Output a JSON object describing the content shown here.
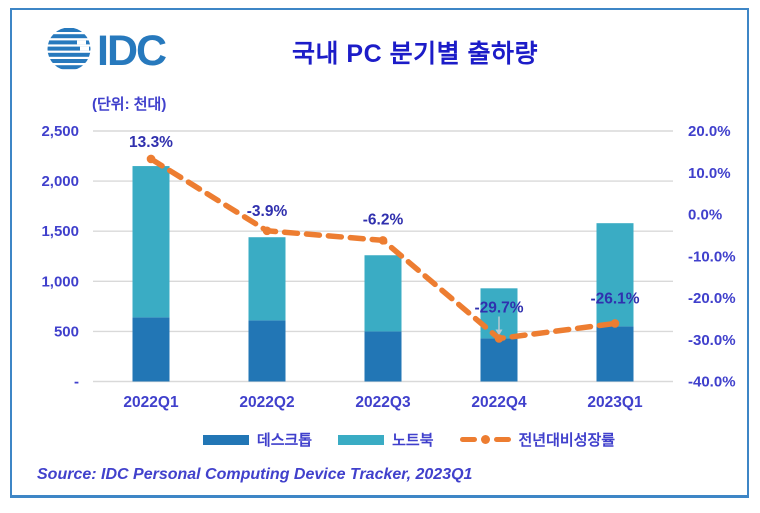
{
  "header": {
    "logo_text": "IDC",
    "title": "국내 PC 분기별 출하량"
  },
  "unit_label": "(단위: 천대)",
  "source_note": "Source: IDC Personal Computing Device Tracker, 2023Q1",
  "colors": {
    "desktop_bar": "#2276B5",
    "notebook_bar": "#3AACC4",
    "growth_line": "#ED7D31",
    "gridline": "#D9D9D9",
    "axis_text": "#4040CC",
    "data_label": "#3030AE",
    "title_text": "#1C1CC8",
    "logo_blue": "#2779BD",
    "frame_border": "#3E86C6",
    "callout_arrow": "#B8C9D2"
  },
  "chart_data": {
    "type": "combo-stacked-bar-line",
    "title": "국내 PC 분기별 출하량",
    "unit": "(단위: 천대)",
    "categories": [
      "2022Q1",
      "2022Q2",
      "2022Q3",
      "2022Q4",
      "2023Q1"
    ],
    "bar_series": [
      {
        "name": "데스크톱",
        "color": "#2276B5",
        "values": [
          640,
          610,
          500,
          430,
          550
        ]
      },
      {
        "name": "노트북",
        "color": "#3AACC4",
        "values": [
          1510,
          830,
          760,
          500,
          1030
        ]
      }
    ],
    "bar_totals": [
      2150,
      1440,
      1260,
      930,
      1580
    ],
    "line_series": {
      "name": "전년대비성장률",
      "color": "#ED7D31",
      "values": [
        13.3,
        -3.9,
        -6.2,
        -29.7,
        -26.1
      ],
      "point_labels": [
        "13.3%",
        "-3.9%",
        "-6.2%",
        "-29.7%",
        "-26.1%"
      ],
      "callout_index": 3
    },
    "left_axis": {
      "min": 0,
      "max": 2500,
      "tick_values": [
        2500,
        2000,
        1500,
        1000,
        500,
        0
      ],
      "tick_labels": [
        "2,500",
        "2,000",
        "1,500",
        "1,000",
        "500",
        "-"
      ]
    },
    "right_axis": {
      "min": -40,
      "max": 20,
      "tick_values": [
        20,
        10,
        0,
        -10,
        -20,
        -30,
        -40
      ],
      "tick_labels": [
        "20.0%",
        "10.0%",
        "0.0%",
        "-10.0%",
        "-20.0%",
        "-30.0%",
        "-40.0%"
      ]
    },
    "grid": true,
    "legend_position": "bottom"
  },
  "legend": {
    "items": [
      {
        "label": "데스크톱",
        "swatch": "rect",
        "color": "#2276B5"
      },
      {
        "label": "노트북",
        "swatch": "rect",
        "color": "#3AACC4"
      },
      {
        "label": "전년대비성장률",
        "swatch": "line-dot",
        "color": "#ED7D31"
      }
    ]
  }
}
